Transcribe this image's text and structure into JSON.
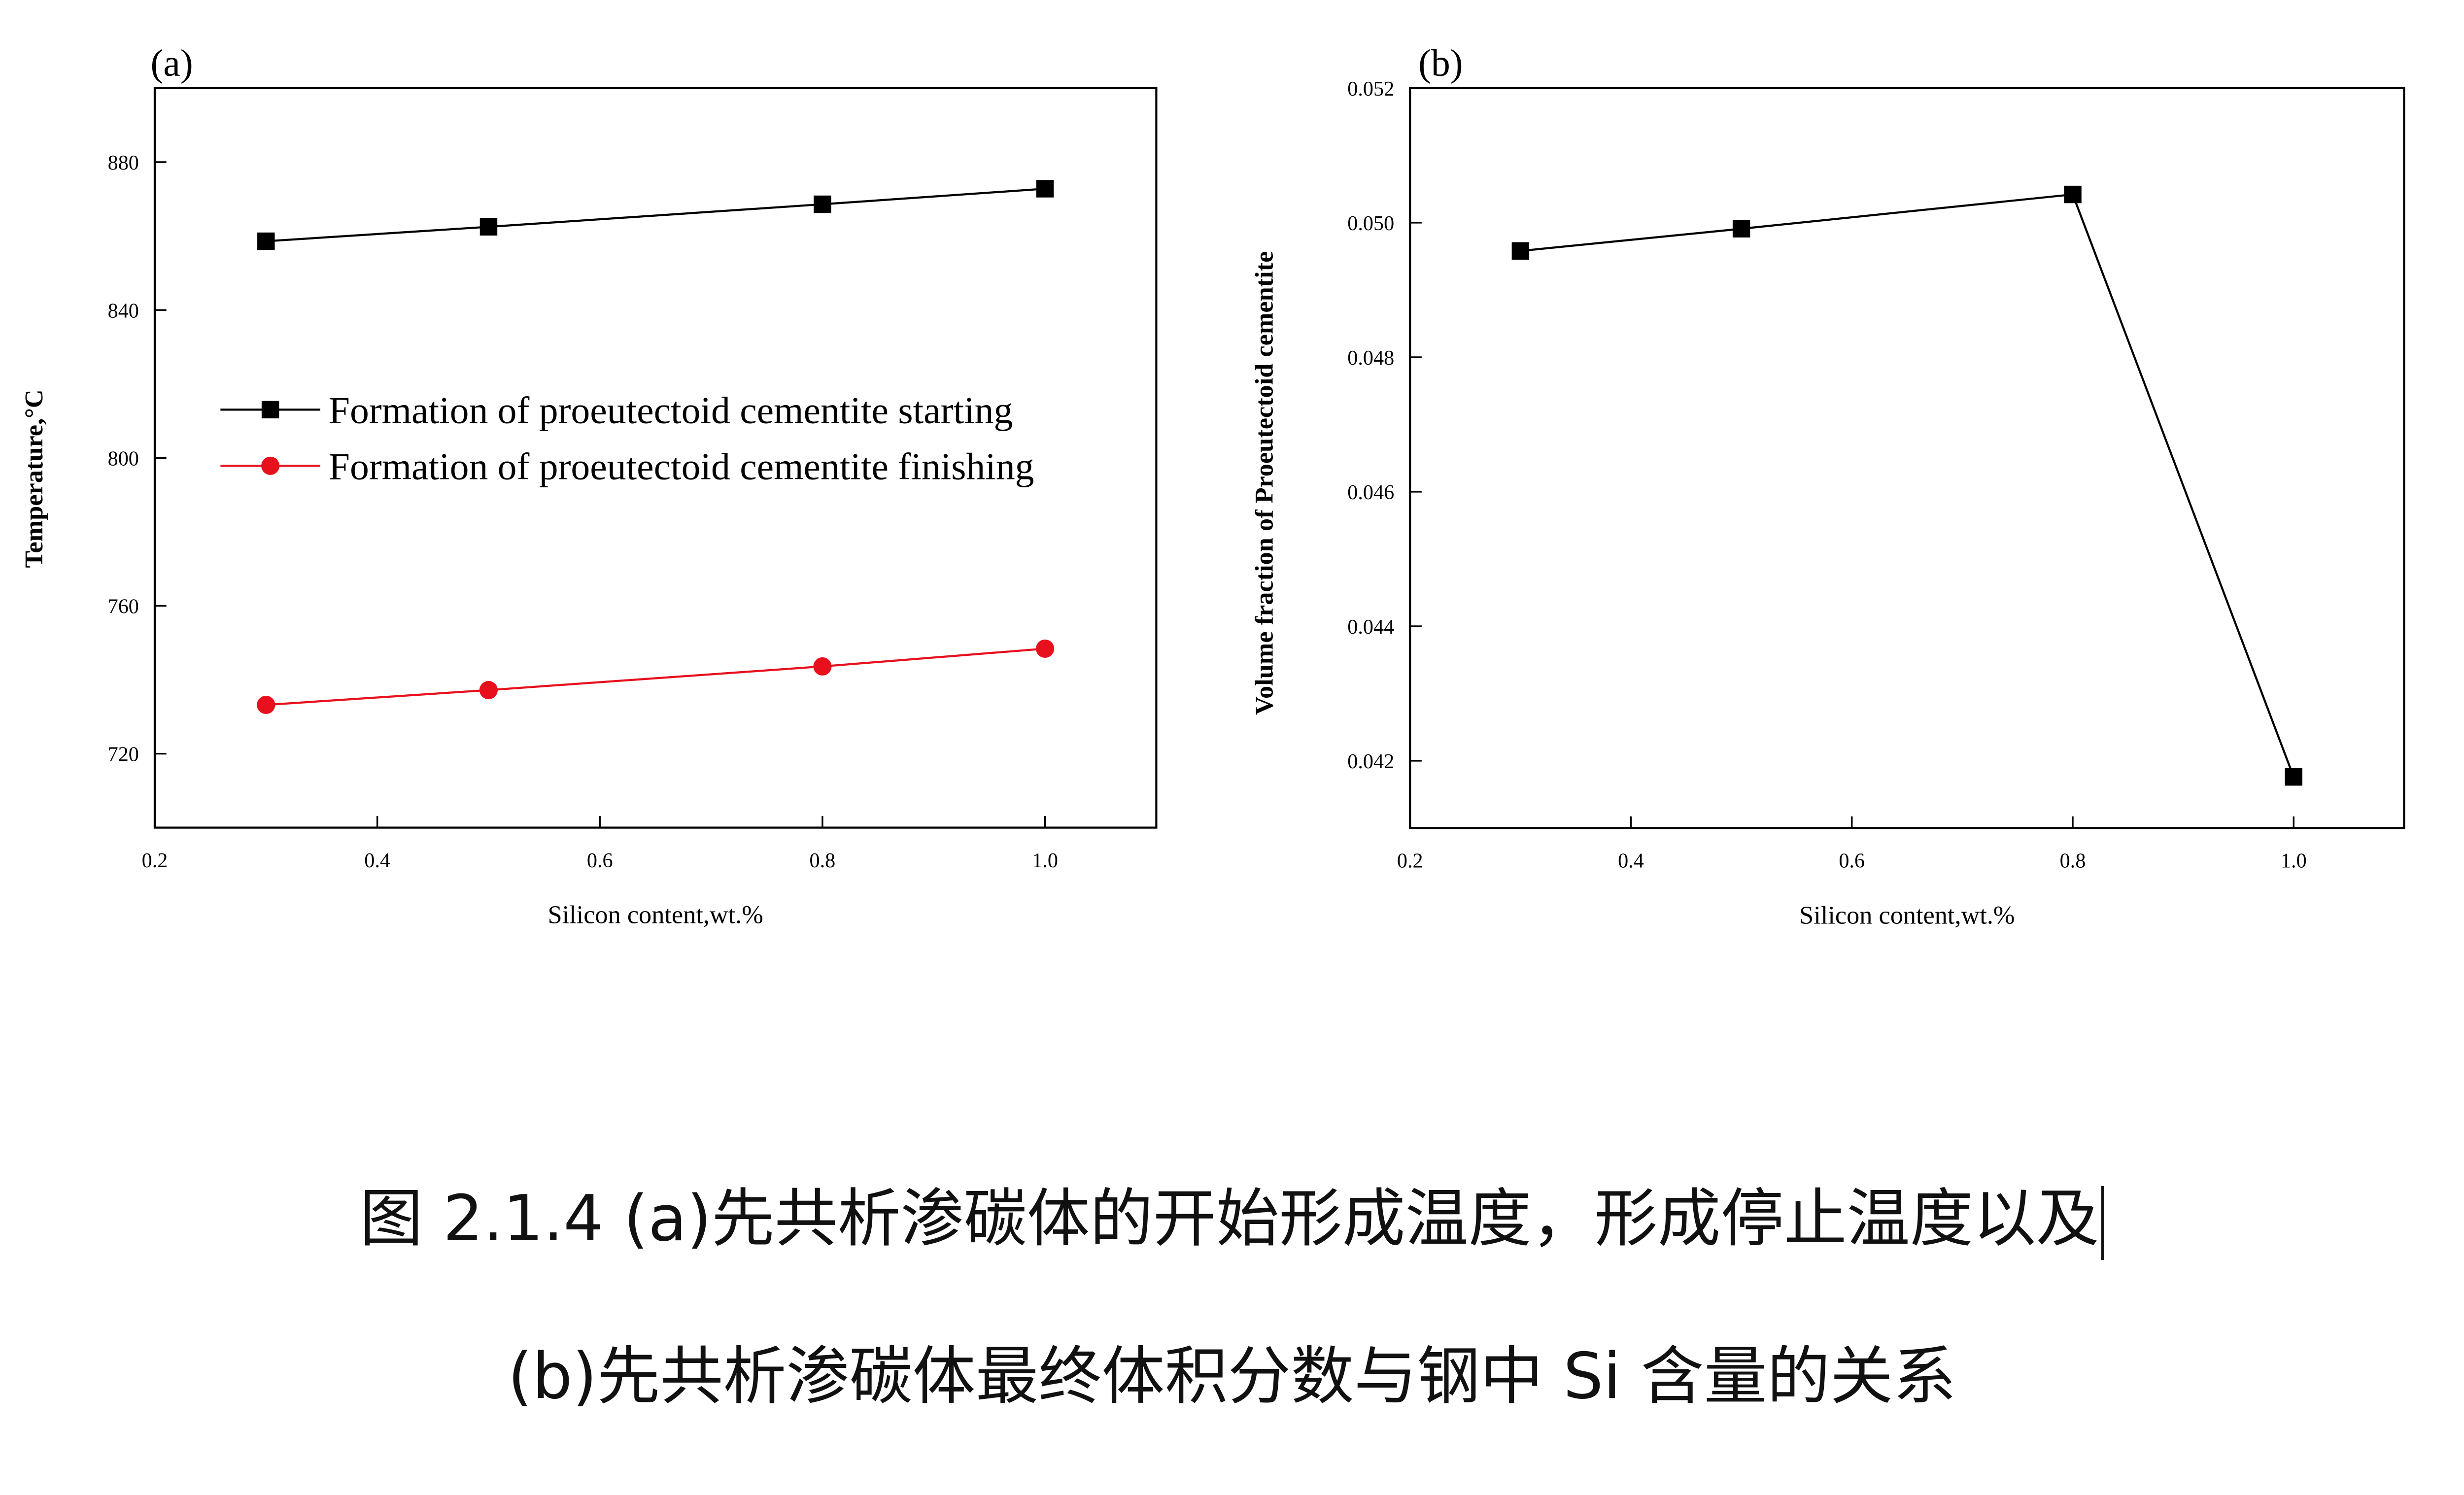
{
  "chart_data": [
    {
      "panel_label": "(a)",
      "type": "line",
      "xlabel": "Silicon content,wt.%",
      "ylabel": "Temperature,°C",
      "xlim": [
        0.2,
        1.1
      ],
      "ylim": [
        700,
        900
      ],
      "xticks": [
        "0.2",
        "0.4",
        "0.6",
        "0.8",
        "1.0"
      ],
      "yticks": [
        "720",
        "760",
        "800",
        "840",
        "880"
      ],
      "grid": false,
      "legend_placement": "center",
      "x": [
        0.3,
        0.5,
        0.8,
        1.0
      ],
      "series": [
        {
          "name": "Formation of proeutectoid cementite starting",
          "values": [
            858.6,
            862.5,
            868.6,
            872.8
          ],
          "color": "#000000",
          "marker": "square"
        },
        {
          "name": "Formation of proeutectoid cementite finishing",
          "values": [
            733.2,
            737.2,
            743.6,
            748.4
          ],
          "color": "#e8101c",
          "marker": "circle"
        }
      ]
    },
    {
      "panel_label": "(b)",
      "type": "line",
      "xlabel": "Silicon content,wt.%",
      "ylabel": "Volume fraction of Proeutectoid cementite",
      "xlim": [
        0.2,
        1.1
      ],
      "ylim": [
        0.041,
        0.052
      ],
      "xticks": [
        "0.2",
        "0.4",
        "0.6",
        "0.8",
        "1.0"
      ],
      "yticks": [
        "0.042",
        "0.044",
        "0.046",
        "0.048",
        "0.050",
        "0.052"
      ],
      "grid": false,
      "x": [
        0.3,
        0.5,
        0.8,
        1.0
      ],
      "series": [
        {
          "values": [
            0.04958,
            0.04991,
            0.05042,
            0.04176
          ],
          "color": "#000000",
          "marker": "square"
        }
      ]
    }
  ],
  "caption": {
    "line1": "图 2.1.4 (a)先共析渗碳体的开始形成温度，形成停止温度以及",
    "line2": "(b)先共析渗碳体最终体积分数与钢中 Si 含量的关系"
  }
}
